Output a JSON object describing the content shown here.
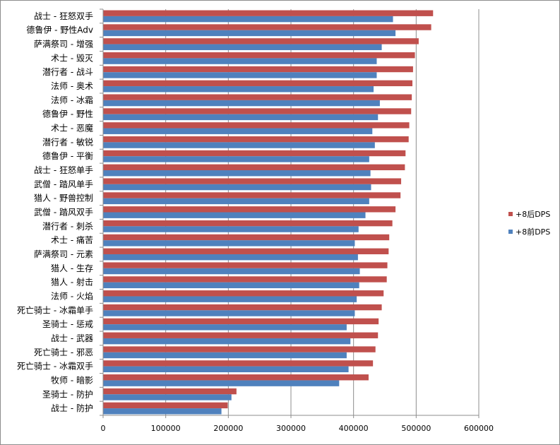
{
  "chart_data": {
    "type": "bar",
    "orientation": "horizontal",
    "title": "",
    "xlabel": "",
    "ylabel": "",
    "xlim": [
      0,
      600000
    ],
    "xticks": [
      "0",
      "100000",
      "200000",
      "300000",
      "400000",
      "500000",
      "600000"
    ],
    "grid": "vertical",
    "legend_position": "right",
    "categories": [
      "战士 - 狂怒双手",
      "德鲁伊 - 野性Adv",
      "萨满祭司 - 增强",
      "术士 - 毁灭",
      "潜行者 - 战斗",
      "法师 - 奥术",
      "法师 - 冰霜",
      "德鲁伊 - 野性",
      "术士 - 恶魔",
      "潜行者 - 敏锐",
      "德鲁伊 - 平衡",
      "战士 - 狂怒单手",
      "武僧 - 踏风单手",
      "猎人 - 野兽控制",
      "武僧 - 踏风双手",
      "潜行者 - 刺杀",
      "术士 - 痛苦",
      "萨满祭司 - 元素",
      "猎人 - 生存",
      "猎人 - 射击",
      "法师 - 火焰",
      "死亡骑士 - 冰霜单手",
      "圣骑士 - 惩戒",
      "战士 - 武器",
      "死亡骑士 - 邪恶",
      "死亡骑士 - 冰霜双手",
      "牧师 - 暗影",
      "圣骑士 - 防护",
      "战士 - 防护"
    ],
    "series": [
      {
        "name": "+8后DPS",
        "color": "#c0504d",
        "values": [
          527000,
          524000,
          504000,
          498000,
          495000,
          494000,
          493000,
          492000,
          489000,
          488000,
          483000,
          482000,
          476000,
          475000,
          467000,
          462000,
          457000,
          456000,
          454000,
          453000,
          448000,
          445000,
          440000,
          439000,
          435000,
          431000,
          424000,
          213000,
          199000
        ]
      },
      {
        "name": "+8前DPS",
        "color": "#4f81bd",
        "values": [
          463000,
          467000,
          445000,
          437000,
          437000,
          432000,
          442000,
          439000,
          430000,
          434000,
          425000,
          427000,
          428000,
          425000,
          419000,
          408000,
          402000,
          407000,
          410000,
          409000,
          405000,
          402000,
          389000,
          395000,
          389000,
          392000,
          377000,
          205000,
          189000
        ]
      }
    ]
  }
}
